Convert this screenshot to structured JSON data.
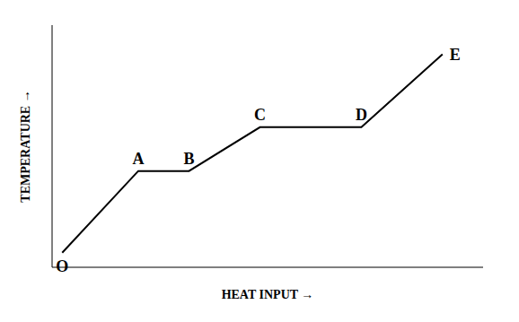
{
  "chart_data": {
    "type": "line",
    "x": [
      0,
      1.5,
      2.5,
      3.9,
      5.9,
      7.5
    ],
    "values": [
      0,
      2.8,
      2.8,
      4.3,
      4.3,
      6.8
    ],
    "color": "#000000",
    "xlabel": "HEAT INPUT →",
    "ylabel": "TEMPERATURE →",
    "xlim": [
      -0.2,
      8.3
    ],
    "ylim": [
      -0.5,
      7.8
    ],
    "tick_labels": false,
    "grid": false,
    "annotations": [
      {
        "text": "O",
        "x": 0,
        "y": 0
      },
      {
        "text": "A",
        "x": 1.5,
        "y": 2.8
      },
      {
        "text": "B",
        "x": 2.5,
        "y": 2.8
      },
      {
        "text": "C",
        "x": 3.9,
        "y": 4.3
      },
      {
        "text": "D",
        "x": 5.9,
        "y": 4.3
      },
      {
        "text": "E",
        "x": 7.5,
        "y": 6.8
      }
    ]
  }
}
